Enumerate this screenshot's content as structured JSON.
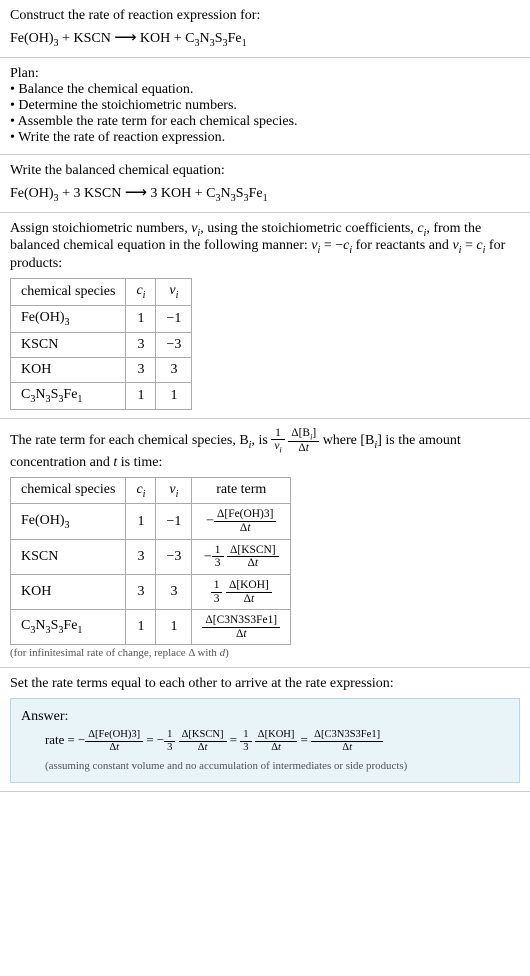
{
  "header": {
    "line1": "Construct the rate of reaction expression for:",
    "equation_left": "Fe(OH)",
    "equation_left_sub": "3",
    "plus": " + KSCN ",
    "arrow": "⟶",
    "equation_right_pre": " KOH + C",
    "c_sub1": "3",
    "n": "N",
    "c_sub2": "3",
    "s": "S",
    "c_sub3": "3",
    "fe": "Fe",
    "c_sub4": "1"
  },
  "plan": {
    "title": "Plan:",
    "items": [
      "Balance the chemical equation.",
      "Determine the stoichiometric numbers.",
      "Assemble the rate term for each chemical species.",
      "Write the rate of reaction expression."
    ]
  },
  "balanced": {
    "title": "Write the balanced chemical equation:",
    "l1": "Fe(OH)",
    "l1s": "3",
    "l2": " + 3 KSCN ",
    "arrow": "⟶",
    "r1": " 3 KOH + C",
    "s1": "3",
    "n": "N",
    "s2": "3",
    "s": "S",
    "s3": "3",
    "fe": "Fe",
    "s4": "1"
  },
  "assign": {
    "p1": "Assign stoichiometric numbers, ",
    "nu": "ν",
    "i1": "i",
    "p2": ", using the stoichiometric coefficients, ",
    "c": "c",
    "i2": "i",
    "p3": ", from the balanced chemical equation in the following manner: ",
    "nu2": "ν",
    "i3": "i",
    "eq1": " = −",
    "c2": "c",
    "i4": "i",
    "p4": " for reactants and ",
    "nu3": "ν",
    "i5": "i",
    "eq2": " = ",
    "c3": "c",
    "i6": "i",
    "p5": " for products:",
    "headers": {
      "species": "chemical species",
      "ci": "c",
      "ci_sub": "i",
      "nui": "ν",
      "nui_sub": "i"
    },
    "rows": [
      {
        "species_pre": "Fe(OH)",
        "species_sub": "3",
        "species_post": "",
        "ci": "1",
        "nui": "−1"
      },
      {
        "species_pre": "KSCN",
        "species_sub": "",
        "species_post": "",
        "ci": "3",
        "nui": "−3"
      },
      {
        "species_pre": "KOH",
        "species_sub": "",
        "species_post": "",
        "ci": "3",
        "nui": "3"
      },
      {
        "species_pre": "C",
        "species_sub": "",
        "species_post": "",
        "ci": "1",
        "nui": "1"
      }
    ],
    "complex_species": {
      "c": "C",
      "s1": "3",
      "n": "N",
      "s2": "3",
      "s": "S",
      "s3": "3",
      "fe": "Fe",
      "s4": "1"
    }
  },
  "rate_term": {
    "p1": "The rate term for each chemical species, B",
    "i1": "i",
    "p2": ", is ",
    "one": "1",
    "nu": "ν",
    "nu_sub": "i",
    "delta_b": "Δ[B",
    "delta_b_sub": "i",
    "delta_b_close": "]",
    "delta_t": "Δt",
    "p3": " where [B",
    "i2": "i",
    "p4": "] is the amount concentration and ",
    "t": "t",
    "p5": " is time:",
    "headers": {
      "species": "chemical species",
      "ci": "c",
      "ci_sub": "i",
      "nui": "ν",
      "nui_sub": "i",
      "rate": "rate term"
    },
    "rows": {
      "r1": {
        "ci": "1",
        "nui": "−1",
        "neg": "−",
        "num": "Δ[Fe(OH)3]",
        "den": "Δt"
      },
      "r2": {
        "sp": "KSCN",
        "ci": "3",
        "nui": "−3",
        "neg": "−",
        "coef_num": "1",
        "coef_den": "3",
        "num": "Δ[KSCN]",
        "den": "Δt"
      },
      "r3": {
        "sp": "KOH",
        "ci": "3",
        "nui": "3",
        "coef_num": "1",
        "coef_den": "3",
        "num": "Δ[KOH]",
        "den": "Δt"
      },
      "r4": {
        "ci": "1",
        "nui": "1",
        "num": "Δ[C3N3S3Fe1]",
        "den": "Δt"
      }
    },
    "note": "(for infinitesimal rate of change, replace Δ with d)"
  },
  "final": {
    "title": "Set the rate terms equal to each other to arrive at the rate expression:",
    "answer_label": "Answer:",
    "rate": "rate = −",
    "f1_num": "Δ[Fe(OH)3]",
    "f1_den": "Δt",
    "eq1": " = −",
    "c1_num": "1",
    "c1_den": "3",
    "f2_num": "Δ[KSCN]",
    "f2_den": "Δt",
    "eq2": " = ",
    "c2_num": "1",
    "c2_den": "3",
    "f3_num": "Δ[KOH]",
    "f3_den": "Δt",
    "eq3": " = ",
    "f4_num": "Δ[C3N3S3Fe1]",
    "f4_den": "Δt",
    "note": "(assuming constant volume and no accumulation of intermediates or side products)"
  },
  "colors": {
    "border": "#cccccc",
    "answer_bg": "#e8f4f8",
    "answer_border": "#b8d8e8",
    "text": "#000000",
    "note": "#555555"
  }
}
